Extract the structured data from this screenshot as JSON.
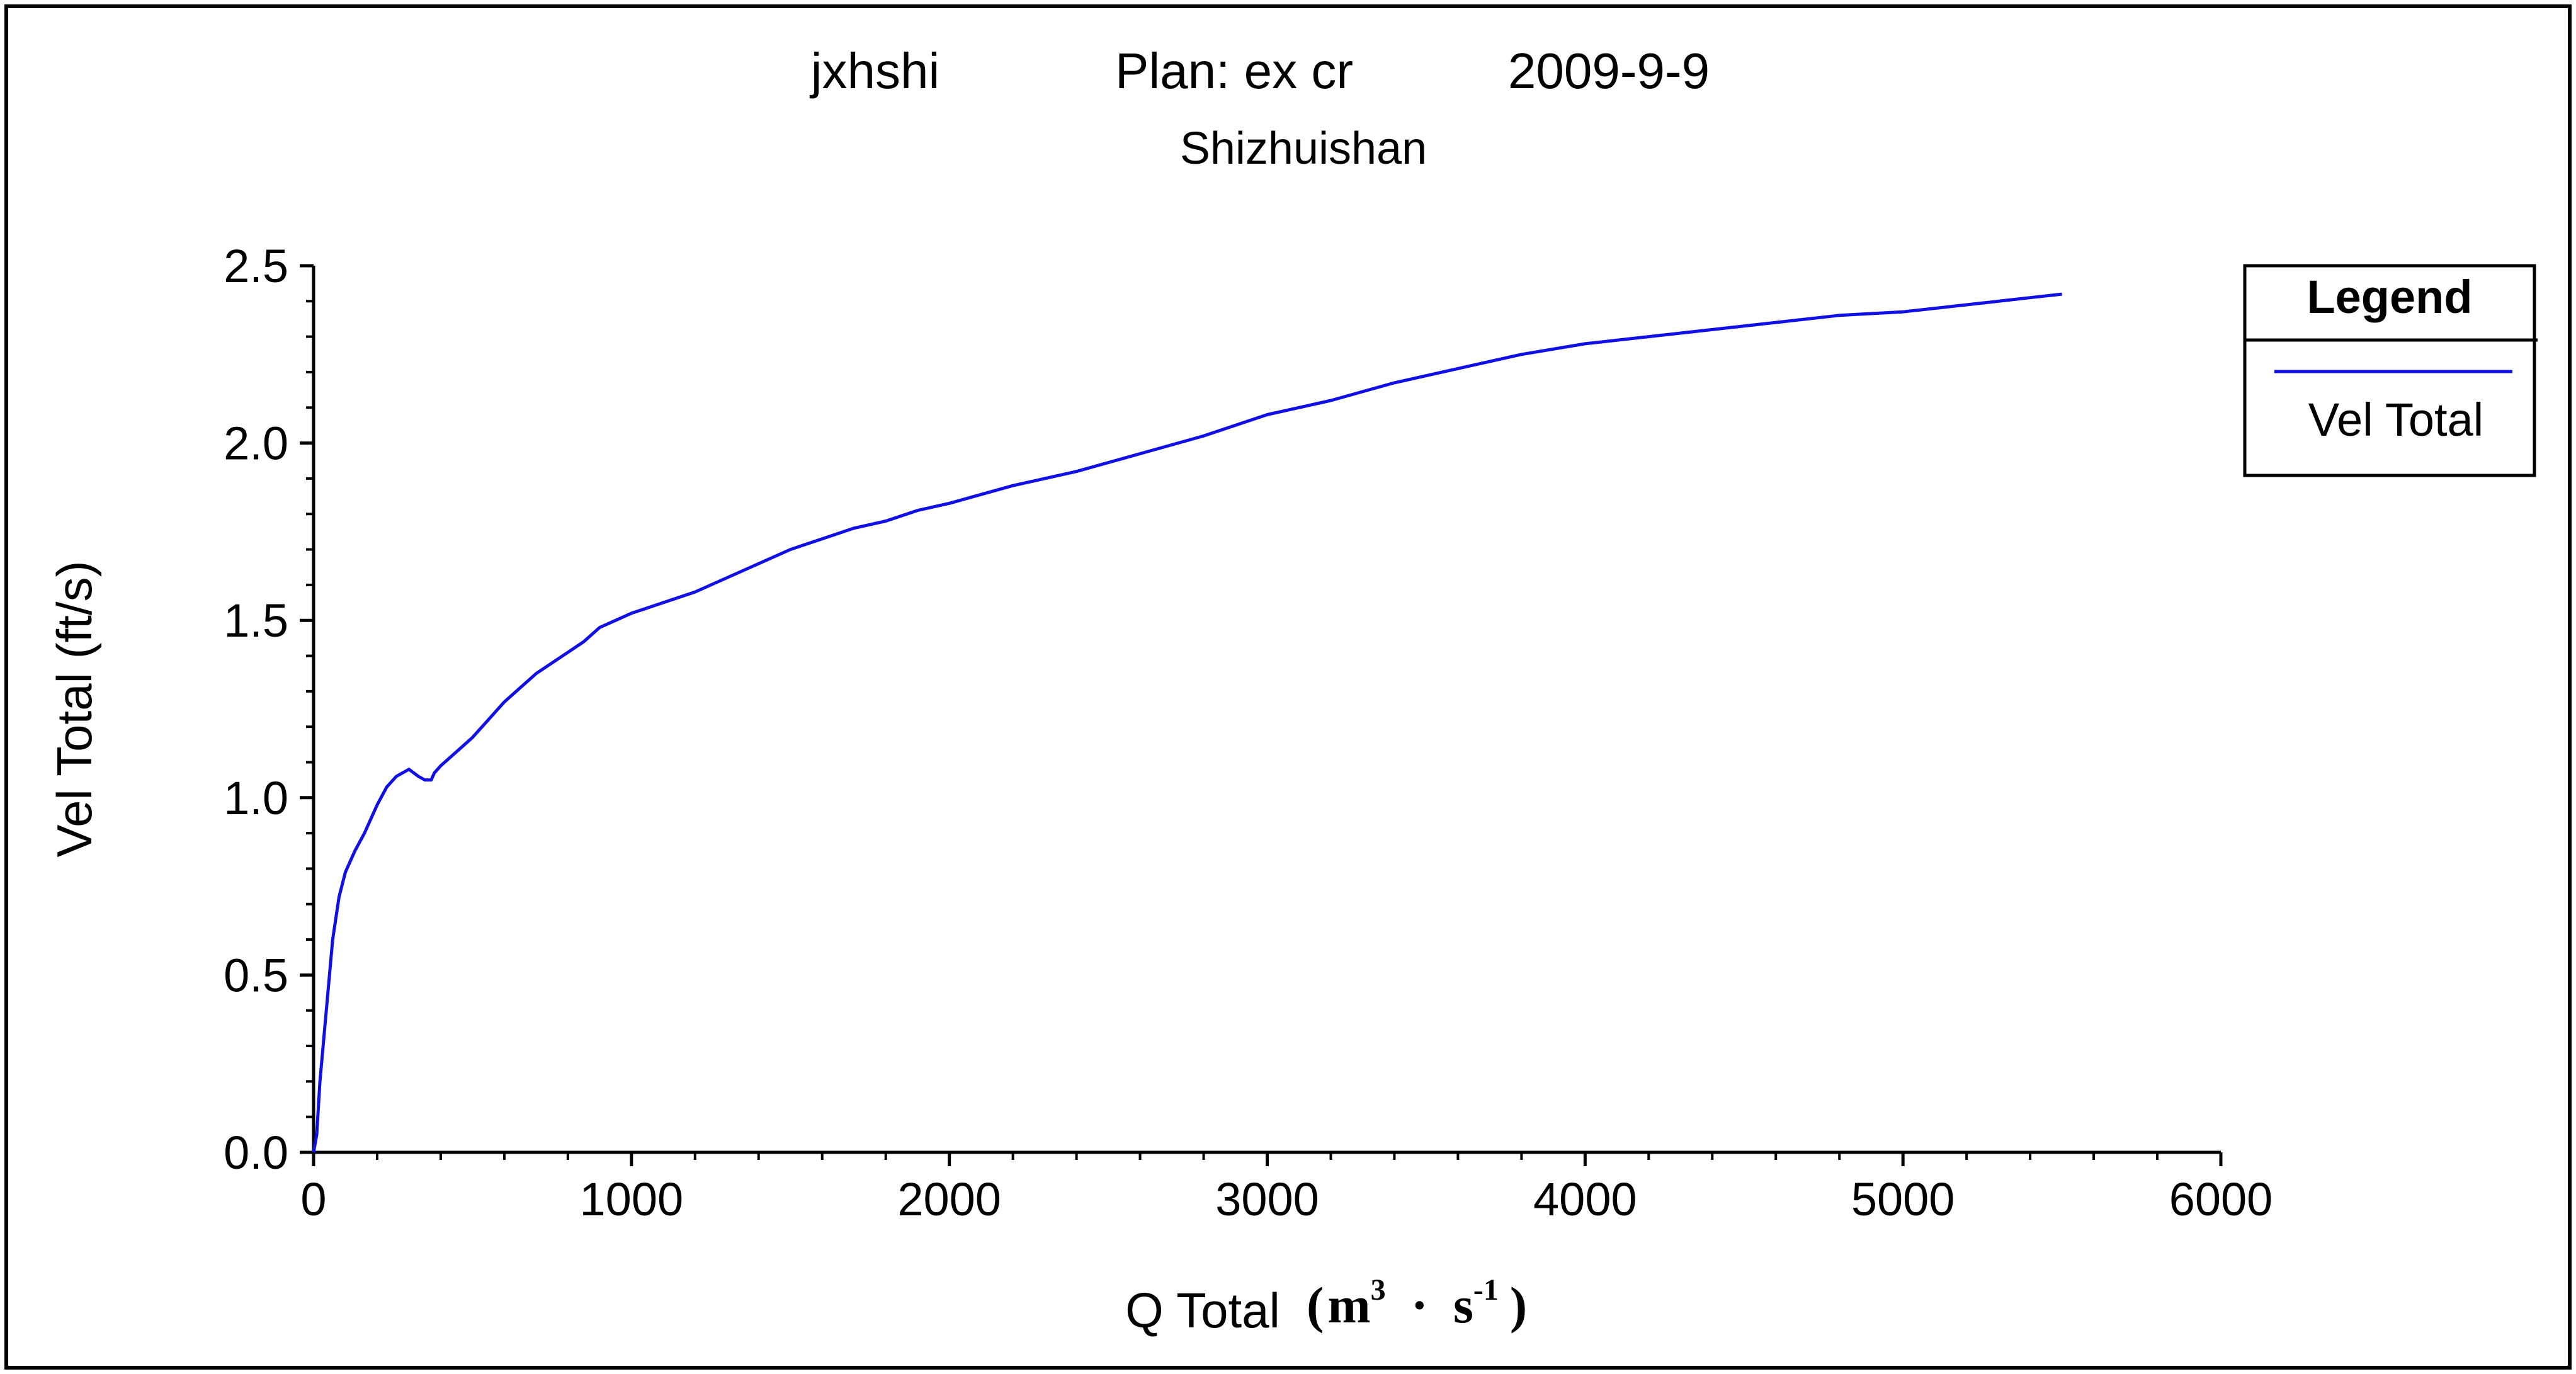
{
  "colors": {
    "line": "#1010e6",
    "axis": "#000000",
    "background": "#ffffff"
  },
  "chart_data": {
    "type": "line",
    "title_parts": [
      "jxhshi",
      "Plan: ex cr",
      "2009-9-9"
    ],
    "subtitle": "Shizhuishan",
    "xlabel": "Q Total",
    "xunit": {
      "open": "(",
      "m": "m",
      "m_exp": "3",
      "dot": "·",
      "s": "s",
      "s_exp": "-1",
      "close": ")"
    },
    "ylabel": "Vel Total (ft/s)",
    "xlim": [
      0,
      6000
    ],
    "ylim": [
      0,
      2.5
    ],
    "xticks": [
      0,
      1000,
      2000,
      3000,
      4000,
      5000,
      6000
    ],
    "xtick_labels": [
      "0",
      "1000",
      "2000",
      "3000",
      "4000",
      "5000",
      "6000"
    ],
    "yticks": [
      0,
      0.5,
      1,
      1.5,
      2,
      2.5
    ],
    "ytick_labels": [
      "0.0",
      "0.5",
      "1.0",
      "1.5",
      "2.0",
      "2.5"
    ],
    "grid": false,
    "legend": {
      "title": "Legend",
      "placement": "right",
      "entries": [
        "Vel Total"
      ]
    },
    "series": [
      {
        "name": "Vel Total",
        "x": [
          0,
          10,
          20,
          40,
          60,
          80,
          100,
          130,
          160,
          200,
          230,
          260,
          300,
          330,
          350,
          370,
          380,
          400,
          450,
          500,
          550,
          600,
          650,
          700,
          750,
          800,
          850,
          900,
          950,
          1000,
          1100,
          1200,
          1300,
          1400,
          1500,
          1600,
          1700,
          1800,
          1900,
          2000,
          2200,
          2400,
          2600,
          2800,
          3000,
          3200,
          3400,
          3600,
          3800,
          4000,
          4200,
          4400,
          4600,
          4800,
          5000,
          5200,
          5400,
          5500
        ],
        "y": [
          0.0,
          0.05,
          0.2,
          0.4,
          0.6,
          0.72,
          0.79,
          0.85,
          0.9,
          0.98,
          1.03,
          1.06,
          1.08,
          1.06,
          1.05,
          1.05,
          1.07,
          1.09,
          1.13,
          1.17,
          1.22,
          1.27,
          1.31,
          1.35,
          1.38,
          1.41,
          1.44,
          1.48,
          1.5,
          1.52,
          1.55,
          1.58,
          1.62,
          1.66,
          1.7,
          1.73,
          1.76,
          1.78,
          1.81,
          1.83,
          1.88,
          1.92,
          1.97,
          2.02,
          2.08,
          2.12,
          2.17,
          2.21,
          2.25,
          2.28,
          2.3,
          2.32,
          2.34,
          2.36,
          2.37,
          2.39,
          2.41,
          2.42
        ]
      }
    ]
  }
}
